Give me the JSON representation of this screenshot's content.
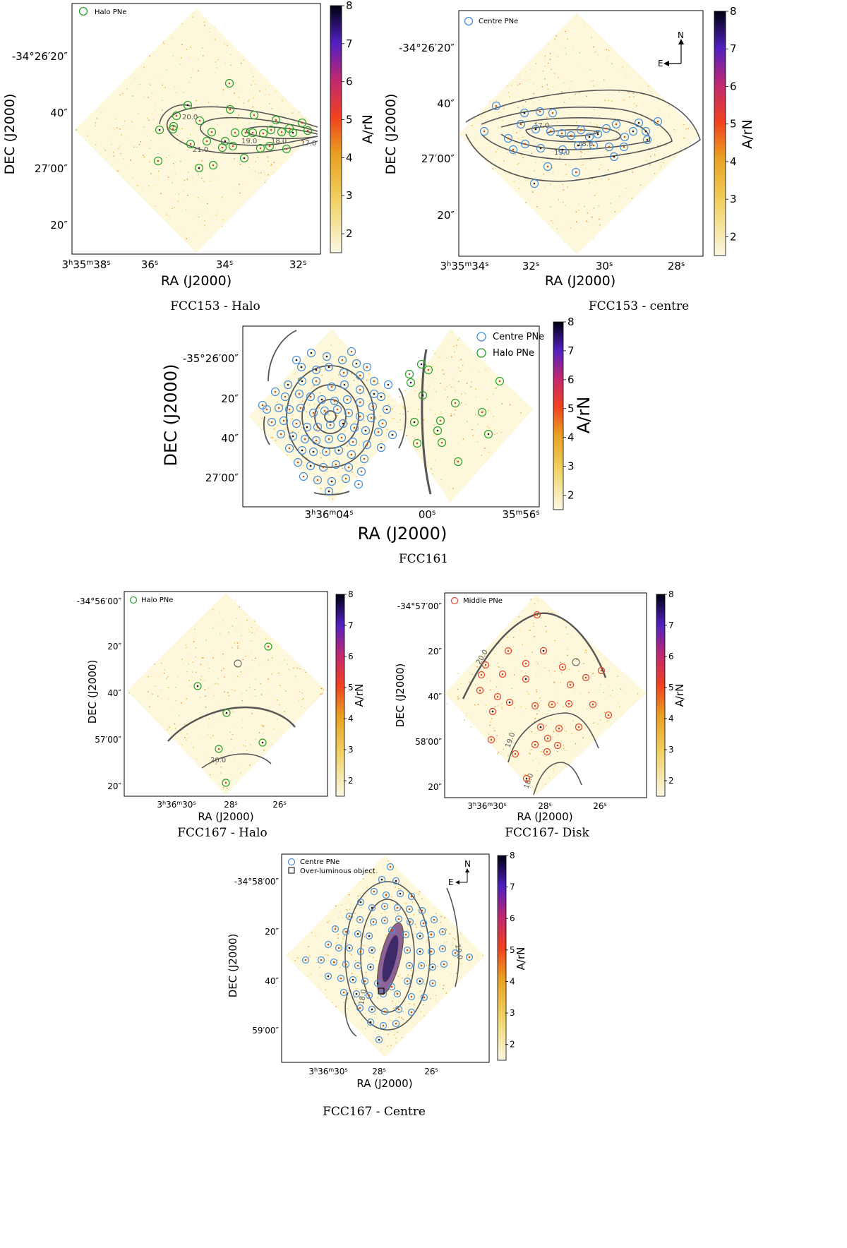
{
  "figure": {
    "panels": [
      {
        "id": "fcc153_halo",
        "caption": "FCC153 - Halo",
        "xlabel": "RA (J2000)",
        "ylabel": "DEC (J2000)",
        "colorbar_label": "A/rN",
        "colorbar_ticks": [
          "8",
          "7",
          "6",
          "5",
          "4",
          "3",
          "2"
        ],
        "x_ticks": [
          {
            "h": "3",
            "m": "35",
            "s": "38"
          },
          {
            "s": "36"
          },
          {
            "s": "34"
          },
          {
            "s": "32"
          }
        ],
        "y_ticks": [
          "-34°26′20″",
          "40″",
          "27′00″",
          "20″"
        ],
        "legend": [
          "Halo PNe"
        ],
        "contour_labels": [
          "20.0",
          "19.0",
          "18.0",
          "17.0",
          "21.0"
        ],
        "compass": null
      },
      {
        "id": "fcc153_centre",
        "caption": "FCC153 - centre",
        "xlabel": "RA (J2000)",
        "ylabel": "DEC (J2000)",
        "colorbar_label": "A/rN",
        "colorbar_ticks": [
          "8",
          "7",
          "6",
          "5",
          "4",
          "3",
          "2"
        ],
        "x_ticks": [
          {
            "h": "3",
            "m": "35",
            "s": "34"
          },
          {
            "s": "32"
          },
          {
            "s": "30"
          },
          {
            "s": "28"
          }
        ],
        "y_ticks": [
          "-34°26′20″",
          "40″",
          "27′00″",
          "20″"
        ],
        "legend": [
          "Centre PNe"
        ],
        "contour_labels": [
          "17.0",
          "18.0",
          "19.0"
        ],
        "compass": {
          "north": "N",
          "east": "E"
        }
      },
      {
        "id": "fcc161",
        "caption": "FCC161",
        "xlabel": "RA (J2000)",
        "ylabel": "DEC (J2000)",
        "colorbar_label": "A/rN",
        "colorbar_ticks": [
          "8",
          "7",
          "6",
          "5",
          "4",
          "3",
          "2"
        ],
        "x_ticks": [
          {
            "h": "3",
            "m": "36",
            "s": "04"
          },
          {
            "s": "00"
          },
          {
            "m": "35",
            "s": "56"
          }
        ],
        "y_ticks": [
          "-35°26′00″",
          "20″",
          "40″",
          "27′00″"
        ],
        "legend": [
          "Centre PNe",
          "Halo PNe"
        ],
        "contour_labels": [],
        "compass": null
      },
      {
        "id": "fcc167_halo",
        "caption": "FCC167 - Halo",
        "xlabel": "RA (J2000)",
        "ylabel": "DEC (J2000)",
        "colorbar_label": "A/rN",
        "colorbar_ticks": [
          "8",
          "7",
          "6",
          "5",
          "4",
          "3",
          "2"
        ],
        "x_ticks": [
          {
            "h": "3",
            "m": "36",
            "s": "30"
          },
          {
            "s": "28"
          },
          {
            "s": "26"
          }
        ],
        "y_ticks": [
          "-34°56′00″",
          "20″",
          "40″",
          "57′00″",
          "20″"
        ],
        "legend": [
          "Halo PNe"
        ],
        "contour_labels": [
          "20.0"
        ],
        "compass": null
      },
      {
        "id": "fcc167_disk",
        "caption": "FCC167- Disk",
        "xlabel": "RA (J2000)",
        "ylabel": "DEC (J2000)",
        "colorbar_label": "A/rN",
        "colorbar_ticks": [
          "8",
          "7",
          "6",
          "5",
          "4",
          "3",
          "2"
        ],
        "x_ticks": [
          {
            "h": "3",
            "m": "36",
            "s": "30"
          },
          {
            "s": "28"
          },
          {
            "s": "26"
          }
        ],
        "y_ticks": [
          "-34°57′00″",
          "20″",
          "40″",
          "58′00″",
          "20″"
        ],
        "legend": [
          "Middle PNe"
        ],
        "contour_labels": [
          "20.0",
          "19.0",
          "18.0"
        ],
        "compass": null
      },
      {
        "id": "fcc167_centre",
        "caption": "FCC167 - Centre",
        "xlabel": "RA (J2000)",
        "ylabel": "DEC (J2000)",
        "colorbar_label": "A/rN",
        "colorbar_ticks": [
          "8",
          "7",
          "6",
          "5",
          "4",
          "3",
          "2"
        ],
        "x_ticks": [
          {
            "h": "3",
            "m": "36",
            "s": "30"
          },
          {
            "s": "28"
          },
          {
            "s": "26"
          }
        ],
        "y_ticks": [
          "-34°58′00″",
          "20″",
          "40″",
          "59′00″"
        ],
        "legend": [
          "Centre PNe",
          "Over-luminous object"
        ],
        "contour_labels": [
          "18.0",
          "19.0"
        ],
        "compass": {
          "north": "N",
          "east": "E"
        }
      }
    ]
  },
  "colors": {
    "halo_pne": "#2ca02c",
    "centre_pne": "#4a90d9",
    "middle_pne": "#e8402a",
    "contour": "#555555"
  }
}
